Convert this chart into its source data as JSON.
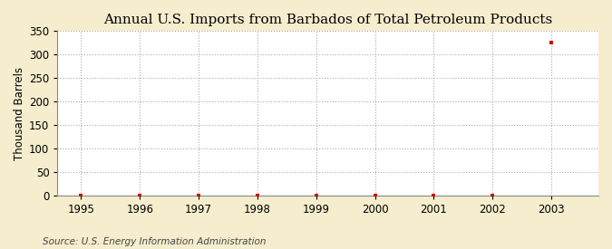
{
  "title": "Annual U.S. Imports from Barbados of Total Petroleum Products",
  "ylabel": "Thousand Barrels",
  "source": "Source: U.S. Energy Information Administration",
  "outer_bg_color": "#f5edcd",
  "plot_bg_color": "#ffffff",
  "years": [
    1995,
    1996,
    1997,
    1998,
    1999,
    2000,
    2001,
    2002,
    2003
  ],
  "values": [
    0,
    0,
    0,
    0,
    0,
    0,
    0,
    0,
    325
  ],
  "data_color": "#cc0000",
  "ylim": [
    0,
    350
  ],
  "yticks": [
    0,
    50,
    100,
    150,
    200,
    250,
    300,
    350
  ],
  "xlim": [
    1994.6,
    2003.8
  ],
  "xticks": [
    1995,
    1996,
    1997,
    1998,
    1999,
    2000,
    2001,
    2002,
    2003
  ],
  "grid_color": "#aaaaaa",
  "grid_linestyle": ":",
  "marker": "s",
  "marker_size": 3,
  "title_fontsize": 11,
  "label_fontsize": 8.5,
  "tick_fontsize": 8.5,
  "source_fontsize": 7.5
}
